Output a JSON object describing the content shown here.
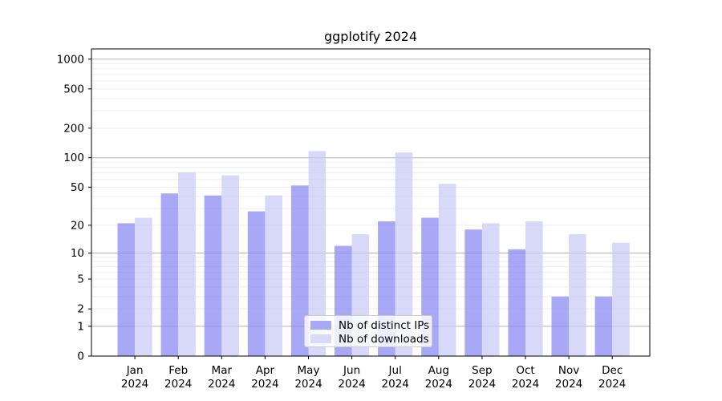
{
  "title": "ggplotify 2024",
  "legend": {
    "items": [
      {
        "label": "Nb of distinct IPs",
        "swatch_color": "#a8a8f5"
      },
      {
        "label": "Nb of downloads",
        "swatch_color": "#d9d9f8"
      }
    ]
  },
  "chart_data": {
    "type": "bar",
    "title": "ggplotify 2024",
    "categories": [
      "Jan",
      "Feb",
      "Mar",
      "Apr",
      "May",
      "Jun",
      "Jul",
      "Aug",
      "Sep",
      "Oct",
      "Nov",
      "Dec"
    ],
    "category_year": "2024",
    "series": [
      {
        "name": "Nb of distinct IPs",
        "fill": "rgba(134,134,243,0.72)",
        "swatch": "#a8a8f5",
        "values": [
          21,
          43,
          41,
          28,
          52,
          12,
          22,
          24,
          18,
          11,
          3,
          3
        ]
      },
      {
        "name": "Nb of downloads",
        "fill": "rgba(201,201,246,0.72)",
        "swatch": "#d9d9f8",
        "values": [
          24,
          71,
          66,
          41,
          117,
          16,
          113,
          54,
          21,
          22,
          16,
          13
        ]
      }
    ],
    "xlabel": "",
    "ylabel": "",
    "yscale": "log1p",
    "ylim": [
      0,
      1270
    ],
    "yticks": [
      0,
      1,
      2,
      5,
      10,
      20,
      50,
      100,
      200,
      500,
      1000
    ],
    "grid": {
      "enabled": true,
      "major_color": "#b2b2b2",
      "minor_color": "#ededed"
    },
    "legend_position": "lower center",
    "spine_color": "#000000",
    "background": "#ffffff"
  }
}
